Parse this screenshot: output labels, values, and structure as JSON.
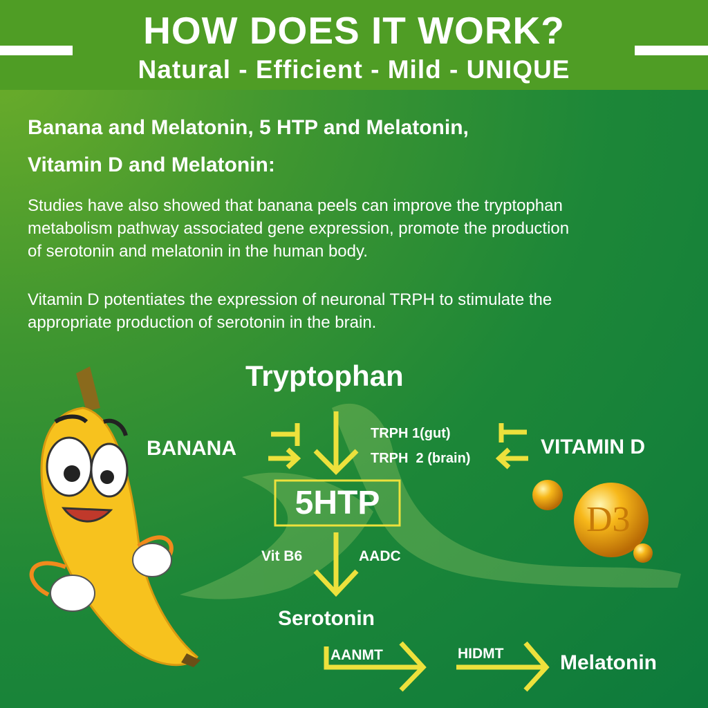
{
  "header": {
    "title": "HOW DOES IT WORK?",
    "subtitle": "Natural - Efficient - Mild - UNIQUE"
  },
  "intro": {
    "heading_lines": [
      "Banana and Melatonin, 5 HTP and Melatonin,",
      "Vitamin D and Melatonin:"
    ],
    "paragraphs": [
      [
        "Studies have also showed that banana peels can improve the tryptophan",
        "metabolism pathway associated gene expression, promote the production",
        "of serotonin and melatonin in the human body."
      ],
      [
        "Vitamin D potentiates the expression of neuronal TRPH to stimulate the",
        "appropriate production of serotonin in the brain."
      ]
    ]
  },
  "pathway": {
    "tryptophan": "Tryptophan",
    "banana": "BANANA",
    "vitamin_d": "VITAMIN D",
    "trph1": "TRPH 1(gut)",
    "trph2": "TRPH  2 (brain)",
    "htp": "5HTP",
    "vit_b6": "Vit B6",
    "aadc": "AADC",
    "serotonin": "Serotonin",
    "aanmt": "AANMT",
    "hidmt": "HIDMT",
    "melatonin": "Melatonin",
    "d3_badge": "D3"
  },
  "colors": {
    "header": "#4f9d25",
    "arrow": "#ede13c",
    "background": "#1d8738"
  }
}
